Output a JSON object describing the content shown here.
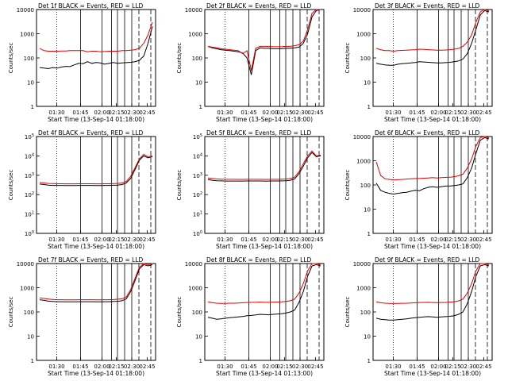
{
  "chart_data": [
    {
      "type": "line",
      "title": "Det 1f BLACK = Events, RED = LLD",
      "xlabel": "Start Time (13-Sep-14 01:18:00)",
      "ylabel": "Counts/sec",
      "yscale": "log",
      "ylim": [
        1,
        10000
      ],
      "ytick_labels": [
        "1",
        "10",
        "100",
        "1000",
        "10000"
      ],
      "xtick_labels": [
        "01:30",
        "01:45",
        "02:00",
        "02:15",
        "02:30",
        "02:45"
      ],
      "series": [
        {
          "color": "#000000",
          "values": [
            40,
            38,
            36,
            40,
            38,
            42,
            45,
            44,
            52,
            60,
            58,
            70,
            60,
            65,
            62,
            55,
            60,
            65,
            60,
            62,
            64,
            66,
            70,
            80,
            120,
            400,
            2000
          ]
        },
        {
          "color": "#e00000",
          "values": [
            250,
            200,
            190,
            190,
            190,
            195,
            195,
            200,
            200,
            200,
            200,
            180,
            190,
            190,
            180,
            185,
            190,
            190,
            190,
            200,
            200,
            210,
            220,
            250,
            400,
            900,
            3000
          ]
        }
      ]
    },
    {
      "type": "line",
      "title": "Det 2f BLACK = Events, RED = LLD",
      "xlabel": "Start Time (13-Sep-14 01:18:00)",
      "ylabel": "Counts/sec",
      "yscale": "log",
      "ylim": [
        1,
        10000
      ],
      "ytick_labels": [
        "1",
        "10",
        "100",
        "1000",
        "10000"
      ],
      "xtick_labels": [
        "01:30",
        "01:45",
        "02:00",
        "02:15",
        "02:30",
        "02:45"
      ],
      "series": [
        {
          "color": "#000000",
          "values": [
            300,
            260,
            240,
            220,
            210,
            200,
            190,
            180,
            160,
            100,
            20,
            200,
            260,
            250,
            250,
            240,
            240,
            240,
            250,
            250,
            260,
            280,
            400,
            1000,
            5000,
            9000,
            10000
          ]
        },
        {
          "color": "#e00000",
          "values": [
            300,
            280,
            260,
            240,
            230,
            220,
            210,
            200,
            150,
            200,
            30,
            250,
            300,
            300,
            300,
            290,
            290,
            290,
            300,
            300,
            320,
            350,
            500,
            1500,
            7000,
            10000,
            10000
          ]
        }
      ]
    },
    {
      "type": "line",
      "title": "Det 3f BLACK = Events, RED = LLD",
      "xlabel": "Start Time (13-Sep-14 01:18:00)",
      "ylabel": "Counts/sec",
      "yscale": "log",
      "ylim": [
        1,
        10000
      ],
      "ytick_labels": [
        "1",
        "10",
        "100",
        "1000",
        "10000"
      ],
      "xtick_labels": [
        "01:30",
        "01:45",
        "02:00",
        "02:15",
        "02:30",
        "02:45"
      ],
      "series": [
        {
          "color": "#000000",
          "values": [
            60,
            55,
            52,
            50,
            50,
            55,
            58,
            60,
            62,
            65,
            70,
            68,
            66,
            64,
            62,
            62,
            64,
            66,
            70,
            75,
            90,
            150,
            400,
            1500,
            6000,
            9000,
            8000
          ]
        },
        {
          "color": "#e00000",
          "values": [
            250,
            220,
            200,
            200,
            190,
            200,
            205,
            210,
            215,
            220,
            230,
            225,
            220,
            215,
            210,
            210,
            212,
            220,
            230,
            250,
            300,
            450,
            900,
            3000,
            8000,
            10000,
            9000
          ]
        }
      ]
    },
    {
      "type": "line",
      "title": "Det 4f BLACK = Events, RED = LLD",
      "xlabel": "Start Time (13-Sep-14 01:18:00)",
      "ylabel": "Counts/sec",
      "yscale": "log",
      "ylim": [
        1,
        100000
      ],
      "ytick_labels": [
        "10^0",
        "10^1",
        "10^2",
        "10^3",
        "10^4",
        "10^5"
      ],
      "xtick_labels": [
        "01:30",
        "01:45",
        "02:00",
        "02:15",
        "02:30",
        "02:45"
      ],
      "series": [
        {
          "color": "#000000",
          "values": [
            350,
            330,
            310,
            300,
            300,
            300,
            295,
            295,
            295,
            300,
            300,
            300,
            300,
            295,
            295,
            300,
            300,
            305,
            310,
            330,
            400,
            700,
            2000,
            6000,
            10000,
            8000,
            9000
          ]
        },
        {
          "color": "#e00000",
          "values": [
            420,
            400,
            380,
            370,
            365,
            365,
            360,
            360,
            360,
            365,
            365,
            365,
            365,
            360,
            360,
            365,
            365,
            370,
            380,
            400,
            480,
            900,
            2500,
            7000,
            12000,
            9000,
            10000
          ]
        }
      ]
    },
    {
      "type": "line",
      "title": "Det 5f BLACK = Events, RED = LLD",
      "xlabel": "Start Time (13-Sep-14 01:18:00)",
      "ylabel": "Counts/sec",
      "yscale": "log",
      "ylim": [
        1,
        100000
      ],
      "ytick_labels": [
        "10^0",
        "10^1",
        "10^2",
        "10^3",
        "10^4",
        "10^5"
      ],
      "xtick_labels": [
        "01:30",
        "01:45",
        "02:00",
        "02:15",
        "02:30",
        "02:45"
      ],
      "series": [
        {
          "color": "#000000",
          "values": [
            600,
            550,
            520,
            510,
            500,
            500,
            500,
            500,
            500,
            505,
            505,
            505,
            505,
            500,
            500,
            505,
            505,
            510,
            520,
            550,
            650,
            1200,
            3000,
            8000,
            15000,
            9000,
            10000
          ]
        },
        {
          "color": "#e00000",
          "values": [
            720,
            680,
            650,
            630,
            620,
            620,
            620,
            615,
            615,
            620,
            620,
            620,
            620,
            615,
            615,
            620,
            620,
            630,
            640,
            680,
            800,
            1500,
            4000,
            10000,
            18000,
            10000,
            11000
          ]
        }
      ]
    },
    {
      "type": "line",
      "title": "Det 6f BLACK = Events, RED = LLD",
      "xlabel": "Start Time (13-Sep-14 01:18:00)",
      "ylabel": "Counts/sec",
      "yscale": "log",
      "ylim": [
        1,
        10000
      ],
      "ytick_labels": [
        "1",
        "10",
        "100",
        "1000",
        "10000"
      ],
      "xtick_labels": [
        "01:30",
        "01:45",
        "02:00",
        "02:15",
        "02:30",
        "02:45"
      ],
      "series": [
        {
          "color": "#000000",
          "values": [
            120,
            60,
            50,
            45,
            42,
            45,
            48,
            50,
            55,
            60,
            58,
            70,
            80,
            85,
            80,
            85,
            90,
            90,
            95,
            100,
            110,
            200,
            500,
            2000,
            7000,
            9000,
            8000
          ]
        },
        {
          "color": "#e00000",
          "values": [
            900,
            250,
            180,
            170,
            160,
            165,
            170,
            175,
            180,
            185,
            185,
            190,
            195,
            200,
            195,
            200,
            205,
            210,
            220,
            240,
            280,
            500,
            1200,
            4000,
            9000,
            10000,
            9000
          ]
        }
      ]
    },
    {
      "type": "line",
      "title": "Det 7f BLACK = Events, RED = LLD",
      "xlabel": "Start Time (13-Sep-14 01:18:00)",
      "ylabel": "Counts/sec",
      "yscale": "log",
      "ylim": [
        1,
        10000
      ],
      "ytick_labels": [
        "1",
        "10",
        "100",
        "1000",
        "10000"
      ],
      "xtick_labels": [
        "01:30",
        "01:45",
        "02:00",
        "02:15",
        "02:30",
        "02:45"
      ],
      "series": [
        {
          "color": "#000000",
          "values": [
            320,
            300,
            280,
            270,
            265,
            265,
            262,
            262,
            262,
            265,
            265,
            265,
            265,
            262,
            262,
            265,
            265,
            270,
            275,
            290,
            350,
            700,
            2000,
            6000,
            9000,
            8000,
            9000
          ]
        },
        {
          "color": "#e00000",
          "values": [
            380,
            360,
            340,
            330,
            320,
            320,
            318,
            318,
            318,
            320,
            320,
            320,
            320,
            318,
            318,
            320,
            320,
            325,
            335,
            350,
            420,
            850,
            2500,
            7000,
            10000,
            9000,
            10000
          ]
        }
      ]
    },
    {
      "type": "line",
      "title": "Det 8f BLACK = Events, RED = LLD",
      "xlabel": "Start Time (13-Sep-14 01:13:00)",
      "ylabel": "Counts/sec",
      "yscale": "log",
      "ylim": [
        1,
        10000
      ],
      "ytick_labels": [
        "1",
        "10",
        "100",
        "1000",
        "10000"
      ],
      "xtick_labels": [
        "01:30",
        "01:45",
        "02:00",
        "02:15",
        "02:30",
        "02:45"
      ],
      "series": [
        {
          "color": "#000000",
          "values": [
            60,
            55,
            50,
            52,
            55,
            58,
            60,
            62,
            65,
            70,
            72,
            75,
            80,
            78,
            76,
            80,
            82,
            85,
            90,
            100,
            120,
            250,
            700,
            3000,
            8000,
            9000,
            8000
          ]
        },
        {
          "color": "#e00000",
          "values": [
            260,
            240,
            230,
            225,
            225,
            230,
            230,
            235,
            240,
            245,
            250,
            250,
            255,
            250,
            250,
            255,
            255,
            260,
            270,
            290,
            340,
            600,
            1500,
            5000,
            10000,
            10000,
            9000
          ]
        }
      ]
    },
    {
      "type": "line",
      "title": "Det 9f BLACK = Events, RED = LLD",
      "xlabel": "Start Time (13-Sep-14 01:18:00)",
      "ylabel": "Counts/sec",
      "yscale": "log",
      "ylim": [
        1,
        10000
      ],
      "ytick_labels": [
        "1",
        "10",
        "100",
        "1000",
        "10000"
      ],
      "xtick_labels": [
        "01:30",
        "01:45",
        "02:00",
        "02:15",
        "02:30",
        "02:45"
      ],
      "series": [
        {
          "color": "#000000",
          "values": [
            55,
            50,
            48,
            46,
            46,
            48,
            50,
            52,
            55,
            58,
            60,
            62,
            64,
            62,
            60,
            62,
            64,
            66,
            70,
            80,
            100,
            220,
            700,
            3000,
            8000,
            9000,
            8000
          ]
        },
        {
          "color": "#e00000",
          "values": [
            260,
            240,
            230,
            225,
            222,
            225,
            228,
            230,
            235,
            240,
            245,
            248,
            250,
            245,
            242,
            245,
            248,
            255,
            265,
            285,
            340,
            600,
            1500,
            5000,
            10000,
            10000,
            9000
          ]
        }
      ]
    }
  ]
}
